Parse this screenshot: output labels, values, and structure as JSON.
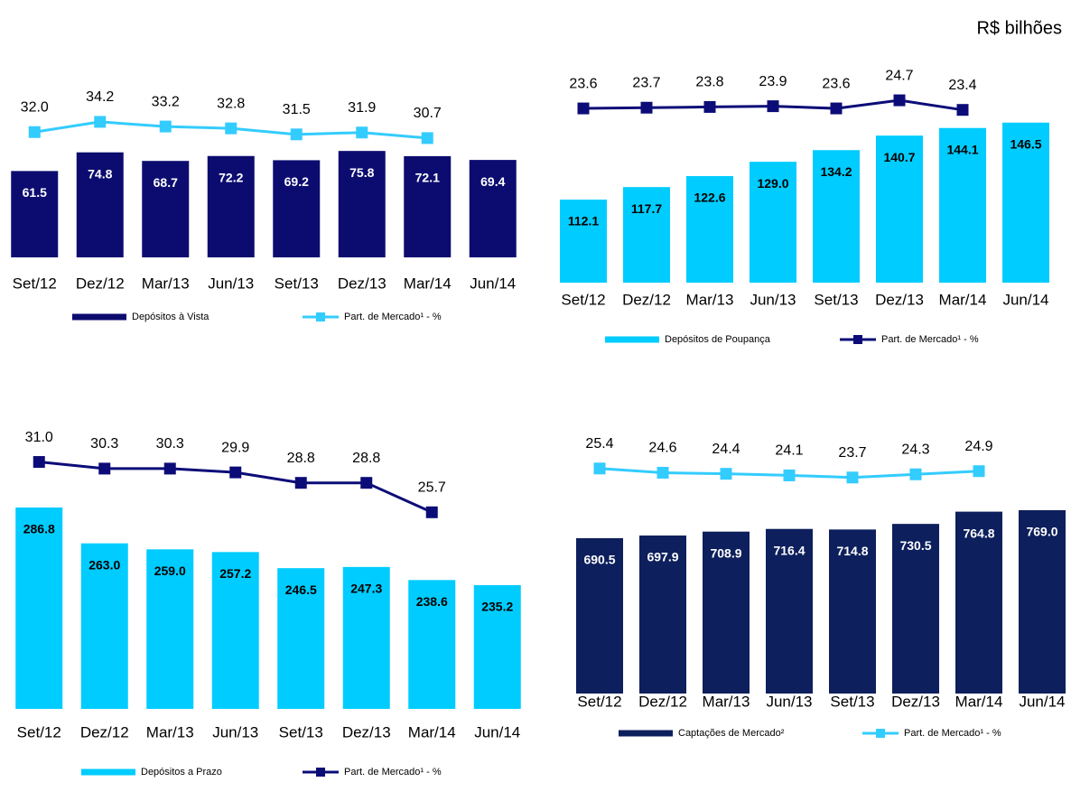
{
  "unit": "R$ bilhões",
  "chart_data": [
    {
      "type": "bar",
      "categories": [
        "Set/12",
        "Dez/12",
        "Mar/13",
        "Jun/13",
        "Set/13",
        "Dez/13",
        "Mar/14",
        "Jun/14"
      ],
      "ylim": [
        0,
        119
      ],
      "y2lim": [
        5,
        41
      ],
      "series": [
        {
          "name": "Depósitos à Vista",
          "color": "#0c0c70",
          "label_color": "#ffffff",
          "values": [
            61.5,
            74.8,
            68.7,
            72.2,
            69.2,
            75.8,
            72.1,
            69.4
          ],
          "value_labels": [
            "61.5",
            "74.8",
            "68.7",
            "72.2",
            "69.2",
            "75.8",
            "72.1",
            "69.4"
          ]
        },
        {
          "name": "Part. de Mercado¹ - %",
          "color": "#33ccff",
          "axis": "y2",
          "values": [
            32.0,
            34.2,
            33.2,
            32.8,
            31.5,
            31.9,
            30.7,
            null
          ],
          "value_labels": [
            "32.0",
            "34.2",
            "33.2",
            "32.8",
            "31.5",
            "31.9",
            "30.7",
            null
          ]
        }
      ]
    },
    {
      "type": "bar",
      "categories": [
        "Set/12",
        "Dez/12",
        "Mar/13",
        "Jun/13",
        "Set/13",
        "Dez/13",
        "Mar/14",
        "Jun/14"
      ],
      "ylim": [
        75,
        169
      ],
      "y2lim": [
        0,
        28.5
      ],
      "series": [
        {
          "name": "Depósitos de Poupança",
          "color": "#00ccff",
          "label_color": "#000000",
          "values": [
            112.1,
            117.7,
            122.6,
            129.0,
            134.2,
            140.7,
            144.1,
            146.5
          ],
          "value_labels": [
            "112.1",
            "117.7",
            "122.6",
            "129.0",
            "134.2",
            "140.7",
            "144.1",
            "146.5"
          ]
        },
        {
          "name": "Part. de Mercado¹ - %",
          "color": "#0c0c78",
          "axis": "y2",
          "values": [
            23.6,
            23.7,
            23.8,
            23.9,
            23.6,
            24.7,
            23.4,
            null
          ],
          "value_labels": [
            "23.6",
            "23.7",
            "23.8",
            "23.9",
            "23.6",
            "24.7",
            "23.4",
            null
          ]
        }
      ]
    },
    {
      "type": "bar",
      "categories": [
        "Set/12",
        "Dez/12",
        "Mar/13",
        "Jun/13",
        "Set/13",
        "Dez/13",
        "Mar/14",
        "Jun/14"
      ],
      "ylim": [
        153,
        336
      ],
      "y2lim": [
        5,
        34
      ],
      "series": [
        {
          "name": "Depósitos a Prazo",
          "color": "#00ccff",
          "label_color": "#000000",
          "values": [
            286.8,
            263.0,
            259.0,
            257.2,
            246.5,
            247.3,
            238.6,
            235.2
          ],
          "value_labels": [
            "286.8",
            "263.0",
            "259.0",
            "257.2",
            "246.5",
            "247.3",
            "238.6",
            "235.2"
          ]
        },
        {
          "name": "Part. de Mercado¹ - %",
          "color": "#0c0c78",
          "axis": "y2",
          "values": [
            31.0,
            30.3,
            30.3,
            29.9,
            28.8,
            28.8,
            25.7,
            null
          ],
          "value_labels": [
            "31.0",
            "30.3",
            "30.3",
            "29.9",
            "28.8",
            "28.8",
            "25.7",
            null
          ]
        }
      ]
    },
    {
      "type": "bar",
      "categories": [
        "Set/12",
        "Dez/12",
        "Mar/13",
        "Jun/13",
        "Set/13",
        "Dez/13",
        "Mar/14",
        "Jun/14"
      ],
      "ylim": [
        255,
        984
      ],
      "y2lim": [
        -17,
        32
      ],
      "series": [
        {
          "name": "Captações de Mercado²",
          "color": "#0d1f5c",
          "label_color": "#ffffff",
          "values": [
            690.5,
            697.9,
            708.9,
            716.4,
            714.8,
            730.5,
            764.8,
            769.0
          ],
          "value_labels": [
            "690.5",
            "697.9",
            "708.9",
            "716.4",
            "714.8",
            "730.5",
            "764.8",
            "769.0"
          ]
        },
        {
          "name": "Part. de Mercado¹ - %",
          "color": "#33ccff",
          "axis": "y2",
          "values": [
            25.4,
            24.6,
            24.4,
            24.1,
            23.7,
            24.3,
            24.9,
            null
          ],
          "value_labels": [
            "25.4",
            "24.6",
            "24.4",
            "24.1",
            "23.7",
            "24.3",
            "24.9",
            null
          ]
        }
      ]
    }
  ]
}
